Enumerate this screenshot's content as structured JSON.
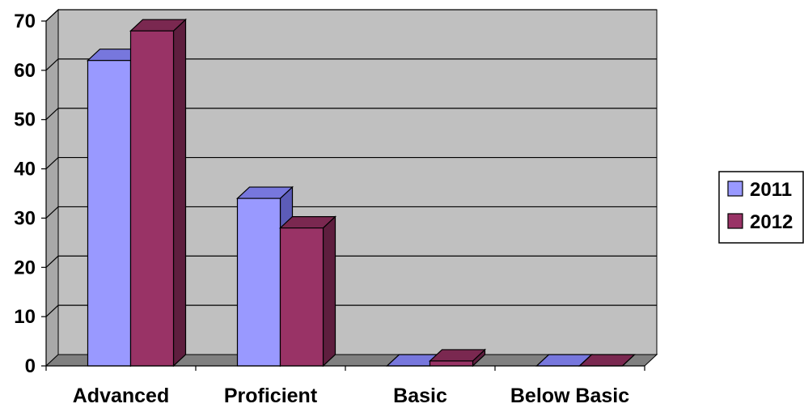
{
  "chart_data": {
    "type": "bar",
    "style": "3d-clustered-column",
    "categories": [
      "Advanced",
      "Proficient",
      "Basic",
      "Below Basic"
    ],
    "series": [
      {
        "name": "2011",
        "values": [
          62,
          34,
          0,
          0
        ],
        "color": "#9999ff",
        "top_color": "#7777dd",
        "side_color": "#5c5cb8"
      },
      {
        "name": "2012",
        "values": [
          68,
          28,
          1,
          0
        ],
        "color": "#993366",
        "top_color": "#7a2850",
        "side_color": "#5e1e3e"
      }
    ],
    "ylim": [
      0,
      70
    ],
    "yticks": [
      "0",
      "10",
      "20",
      "30",
      "40",
      "50",
      "60",
      "70"
    ],
    "grid": true,
    "legend_position": "right",
    "wall_color": "#c0c0c0",
    "floor_color": "#808080"
  }
}
